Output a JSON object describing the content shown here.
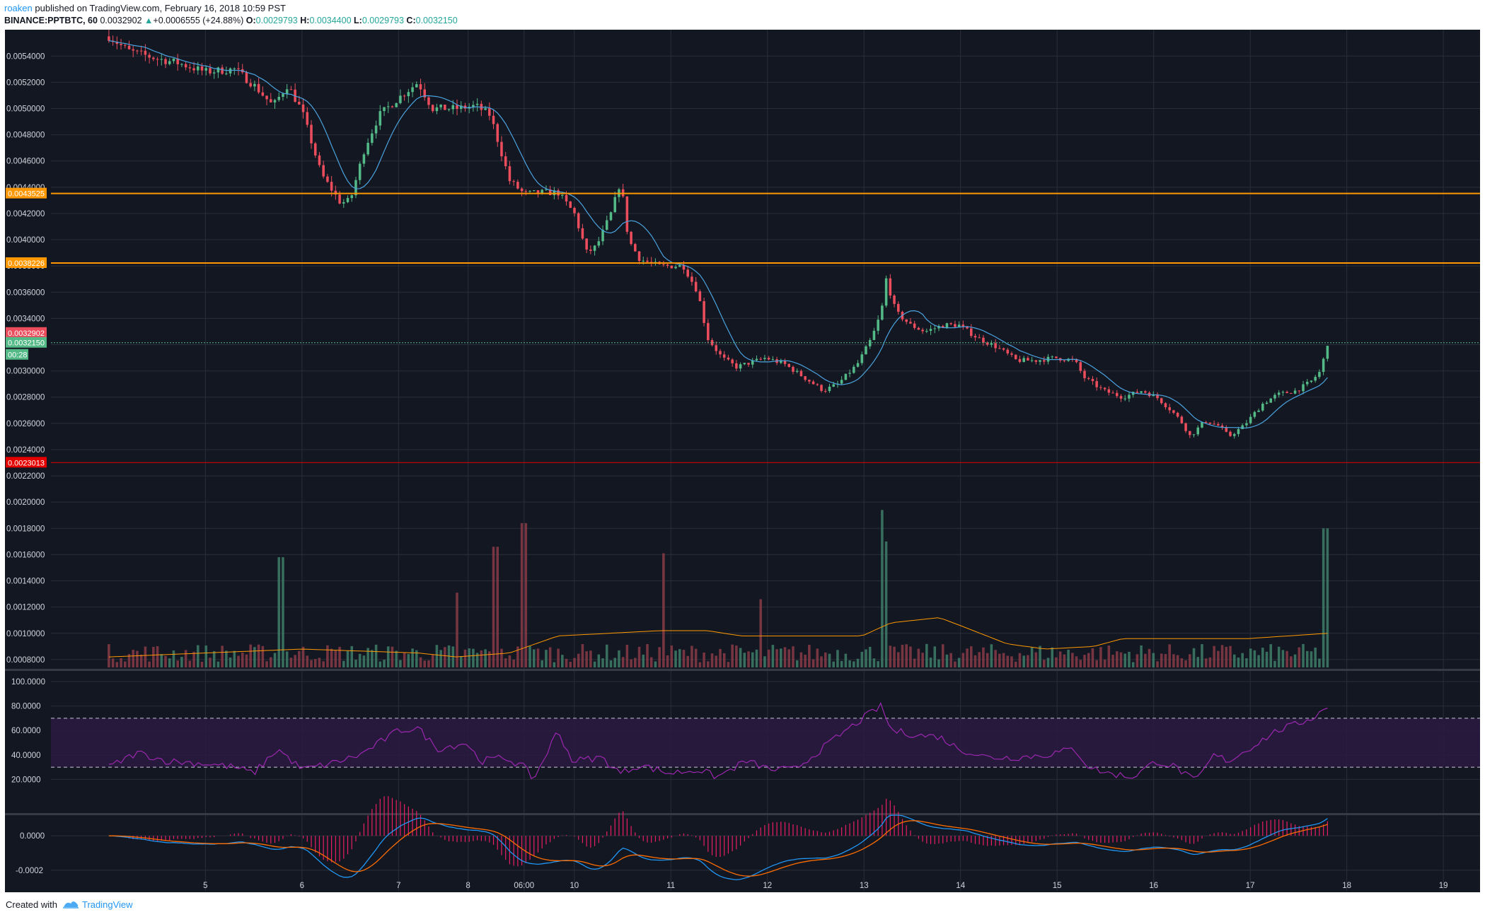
{
  "header": {
    "author": "roaken",
    "published": "published on TradingView.com, February 16, 2018 10:59 PST",
    "symbol": "BINANCE:PPTBTC, 60",
    "last": "0.0032902",
    "change": "+0.0006555 (+24.88%)",
    "o_label": "O:",
    "o_value": "0.0029793",
    "h_label": "H:",
    "h_value": "0.0034400",
    "l_label": "L:",
    "l_value": "0.0029793",
    "c_label": "C:",
    "c_value": "0.0032150"
  },
  "footer": {
    "created_with": "Created with",
    "brand": "TradingView"
  },
  "colors": {
    "background": "#131722",
    "grid": "#2a2e39",
    "up": "#53b987",
    "down": "#eb4d5c",
    "ma": "#4aa3df",
    "volume_ma": "#ff9800",
    "resistance": "#ff9800",
    "support": "#e50000",
    "rsi": "#9c27b0",
    "macd": "#2196f3",
    "signal": "#ff6d00",
    "histogram": "#e91e63"
  },
  "chart_data": {
    "type": "candlestick",
    "symbol": "BINANCE:PPTBTC",
    "interval": "60",
    "price_axis": {
      "ticks": [
        "0.0054000",
        "0.0052000",
        "0.0050000",
        "0.0048000",
        "0.0046000",
        "0.0044000",
        "0.0042000",
        "0.0040000",
        "0.0038000",
        "0.0036000",
        "0.0034000",
        "0.0032000",
        "0.0030000",
        "0.0028000",
        "0.0026000",
        "0.0024000",
        "0.0022000",
        "0.0020000",
        "0.0018000",
        "0.0016000",
        "0.0014000",
        "0.0012000",
        "0.0010000",
        "0.0008000"
      ],
      "range": [
        0.00074,
        0.00559
      ]
    },
    "x_ticks": [
      {
        "label": "5",
        "t": 1
      },
      {
        "label": "6",
        "t": 2
      },
      {
        "label": "7",
        "t": 3
      },
      {
        "label": "8",
        "t": 3.72
      },
      {
        "label": "06:00",
        "t": 4.3
      },
      {
        "label": "10",
        "t": 4.82
      },
      {
        "label": "11",
        "t": 5.82
      },
      {
        "label": "12",
        "t": 6.82
      },
      {
        "label": "13",
        "t": 7.82
      },
      {
        "label": "14",
        "t": 8.82
      },
      {
        "label": "15",
        "t": 9.82
      },
      {
        "label": "16",
        "t": 10.82
      },
      {
        "label": "17",
        "t": 11.82
      },
      {
        "label": "18",
        "t": 12.82
      },
      {
        "label": "19",
        "t": 13.82
      }
    ],
    "price_anchors": [
      [
        0.0,
        0.00555
      ],
      [
        0.2,
        0.00544
      ],
      [
        0.5,
        0.00538
      ],
      [
        0.7,
        0.00535
      ],
      [
        1.0,
        0.00528
      ],
      [
        1.3,
        0.0053
      ],
      [
        1.5,
        0.00518
      ],
      [
        1.7,
        0.00502
      ],
      [
        1.85,
        0.00518
      ],
      [
        2.0,
        0.00498
      ],
      [
        2.2,
        0.0045
      ],
      [
        2.4,
        0.00428
      ],
      [
        2.5,
        0.0043
      ],
      [
        2.65,
        0.0047
      ],
      [
        2.8,
        0.00495
      ],
      [
        3.0,
        0.00508
      ],
      [
        3.2,
        0.0052
      ],
      [
        3.35,
        0.005
      ],
      [
        3.6,
        0.005
      ],
      [
        3.8,
        0.00502
      ],
      [
        3.95,
        0.00495
      ],
      [
        4.05,
        0.0047
      ],
      [
        4.15,
        0.00445
      ],
      [
        4.3,
        0.00435
      ],
      [
        4.5,
        0.00436
      ],
      [
        4.65,
        0.00436
      ],
      [
        4.82,
        0.0042
      ],
      [
        4.95,
        0.0039
      ],
      [
        5.05,
        0.00395
      ],
      [
        5.2,
        0.0042
      ],
      [
        5.3,
        0.00445
      ],
      [
        5.38,
        0.004
      ],
      [
        5.5,
        0.00385
      ],
      [
        5.7,
        0.0038
      ],
      [
        5.95,
        0.0038
      ],
      [
        6.1,
        0.0036
      ],
      [
        6.2,
        0.00325
      ],
      [
        6.35,
        0.0031
      ],
      [
        6.5,
        0.00303
      ],
      [
        6.8,
        0.0031
      ],
      [
        7.0,
        0.00305
      ],
      [
        7.2,
        0.00295
      ],
      [
        7.4,
        0.00285
      ],
      [
        7.55,
        0.0029
      ],
      [
        7.75,
        0.00305
      ],
      [
        7.9,
        0.00325
      ],
      [
        8.0,
        0.00345
      ],
      [
        8.05,
        0.0037
      ],
      [
        8.15,
        0.00345
      ],
      [
        8.3,
        0.00335
      ],
      [
        8.45,
        0.0033
      ],
      [
        8.65,
        0.00335
      ],
      [
        8.8,
        0.00335
      ],
      [
        9.0,
        0.00325
      ],
      [
        9.2,
        0.00318
      ],
      [
        9.4,
        0.00308
      ],
      [
        9.6,
        0.00308
      ],
      [
        9.8,
        0.0031
      ],
      [
        10.0,
        0.00308
      ],
      [
        10.1,
        0.00295
      ],
      [
        10.3,
        0.00285
      ],
      [
        10.5,
        0.0028
      ],
      [
        10.7,
        0.00285
      ],
      [
        10.85,
        0.0028
      ],
      [
        11.0,
        0.0027
      ],
      [
        11.1,
        0.00262
      ],
      [
        11.2,
        0.0025
      ],
      [
        11.35,
        0.00262
      ],
      [
        11.5,
        0.00258
      ],
      [
        11.6,
        0.0025
      ],
      [
        11.75,
        0.00258
      ],
      [
        11.95,
        0.00275
      ],
      [
        12.1,
        0.00282
      ],
      [
        12.3,
        0.00285
      ],
      [
        12.45,
        0.00292
      ],
      [
        12.55,
        0.003
      ],
      [
        12.62,
        0.00321
      ]
    ],
    "volume_spikes": [
      [
        1.78,
        0.00158
      ],
      [
        3.6,
        0.00131
      ],
      [
        4.0,
        0.00166
      ],
      [
        4.3,
        0.00184
      ],
      [
        5.75,
        0.00161
      ],
      [
        6.75,
        0.00126
      ],
      [
        8.0,
        0.00194
      ],
      [
        8.05,
        0.0017
      ],
      [
        12.6,
        0.0018
      ]
    ],
    "volume_ma_anchors": [
      [
        0.0,
        0.00082
      ],
      [
        2.0,
        0.00088
      ],
      [
        3.2,
        0.00085
      ],
      [
        3.6,
        0.00082
      ],
      [
        4.15,
        0.00085
      ],
      [
        4.65,
        0.00098
      ],
      [
        5.7,
        0.00102
      ],
      [
        6.2,
        0.00102
      ],
      [
        6.55,
        0.00098
      ],
      [
        7.0,
        0.00098
      ],
      [
        7.8,
        0.00098
      ],
      [
        8.1,
        0.00108
      ],
      [
        8.6,
        0.00112
      ],
      [
        8.85,
        0.00105
      ],
      [
        9.3,
        0.00092
      ],
      [
        9.7,
        0.00088
      ],
      [
        10.2,
        0.0009
      ],
      [
        10.5,
        0.00096
      ],
      [
        11.3,
        0.00096
      ],
      [
        11.8,
        0.00096
      ],
      [
        12.62,
        0.001
      ]
    ],
    "horizontal_lines": [
      {
        "label": "0.0043525",
        "value": 0.0043525,
        "color": "#ff9800"
      },
      {
        "label": "0.0038226",
        "value": 0.0038226,
        "color": "#ff9800"
      },
      {
        "label": "0.0023013",
        "value": 0.0023013,
        "color": "#e50000"
      }
    ],
    "price_labels": [
      {
        "label": "0.0032902",
        "value": 0.0032902,
        "color": "#eb4d5c"
      },
      {
        "label": "0.0032150",
        "value": 0.003215,
        "color": "#53b987"
      },
      {
        "label": "00:28",
        "color": "#53b987"
      }
    ],
    "rsi": {
      "ticks": [
        "100.0000",
        "80.0000",
        "60.0000",
        "40.0000",
        "20.0000"
      ],
      "range": [
        0,
        100
      ],
      "bands": [
        30,
        70
      ],
      "anchors": [
        [
          0.0,
          30
        ],
        [
          0.3,
          42
        ],
        [
          0.6,
          35
        ],
        [
          1.0,
          33
        ],
        [
          1.3,
          30
        ],
        [
          1.5,
          25
        ],
        [
          1.75,
          45
        ],
        [
          2.0,
          28
        ],
        [
          2.3,
          33
        ],
        [
          2.6,
          40
        ],
        [
          3.0,
          60
        ],
        [
          3.2,
          62
        ],
        [
          3.4,
          45
        ],
        [
          3.7,
          50
        ],
        [
          3.85,
          35
        ],
        [
          4.1,
          38
        ],
        [
          4.3,
          30
        ],
        [
          4.4,
          20
        ],
        [
          4.65,
          60
        ],
        [
          4.8,
          35
        ],
        [
          5.1,
          38
        ],
        [
          5.3,
          25
        ],
        [
          5.5,
          32
        ],
        [
          5.8,
          25
        ],
        [
          6.1,
          28
        ],
        [
          6.3,
          22
        ],
        [
          6.6,
          35
        ],
        [
          6.85,
          28
        ],
        [
          7.1,
          28
        ],
        [
          7.3,
          40
        ],
        [
          7.6,
          58
        ],
        [
          7.9,
          75
        ],
        [
          8.0,
          80
        ],
        [
          8.1,
          60
        ],
        [
          8.25,
          58
        ],
        [
          8.4,
          56
        ],
        [
          8.6,
          55
        ],
        [
          8.8,
          45
        ],
        [
          9.1,
          38
        ],
        [
          9.4,
          38
        ],
        [
          9.7,
          40
        ],
        [
          10.0,
          45
        ],
        [
          10.15,
          30
        ],
        [
          10.35,
          25
        ],
        [
          10.6,
          22
        ],
        [
          10.85,
          35
        ],
        [
          11.05,
          30
        ],
        [
          11.25,
          18
        ],
        [
          11.45,
          40
        ],
        [
          11.6,
          35
        ],
        [
          11.8,
          45
        ],
        [
          12.1,
          60
        ],
        [
          12.3,
          65
        ],
        [
          12.5,
          72
        ],
        [
          12.62,
          80
        ]
      ]
    },
    "macd": {
      "ticks": [
        "0.0000",
        "-0.0002"
      ],
      "range": [
        -0.00032,
        0.00012
      ]
    }
  }
}
